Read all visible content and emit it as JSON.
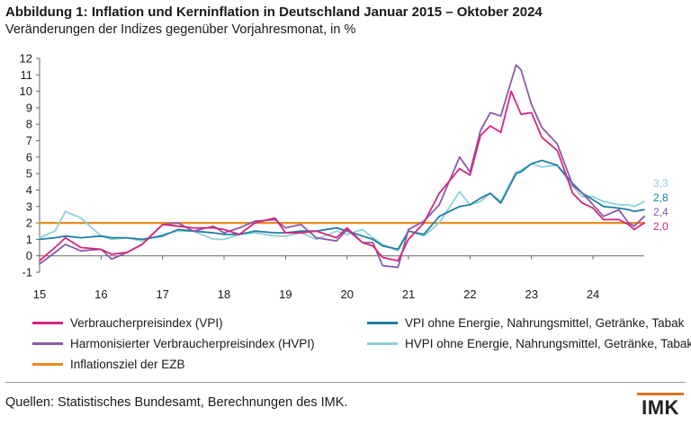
{
  "header": {
    "title": "Abbildung 1: Inflation und Kerninflation in Deutschland Januar 2015 – Oktober 2024",
    "subtitle": "Veränderungen der Indizes gegenüber Vorjahresmonat, in %"
  },
  "chart_data": {
    "type": "line",
    "title": "Abbildung 1: Inflation und Kerninflation in Deutschland Januar 2015 – Oktober 2024",
    "subtitle": "Veränderungen der Indizes gegenüber Vorjahresmonat, in %",
    "xlabel": "",
    "ylabel": "",
    "ylim": [
      -1,
      12
    ],
    "yticks": [
      "-1",
      "0",
      "1",
      "2",
      "3",
      "4",
      "5",
      "6",
      "7",
      "8",
      "9",
      "10",
      "11",
      "12"
    ],
    "xlim": [
      2015,
      2024.833
    ],
    "xticks": [
      {
        "value": 2015,
        "label": "15"
      },
      {
        "value": 2016,
        "label": "16"
      },
      {
        "value": 2017,
        "label": "17"
      },
      {
        "value": 2018,
        "label": "18"
      },
      {
        "value": 2019,
        "label": "19"
      },
      {
        "value": 2020,
        "label": "20"
      },
      {
        "value": 2021,
        "label": "21"
      },
      {
        "value": 2022,
        "label": "22"
      },
      {
        "value": 2023,
        "label": "23"
      },
      {
        "value": 2024,
        "label": "24"
      }
    ],
    "grid": false,
    "series": [
      {
        "name": "Verbraucherpreisindex (VPI)",
        "color": "#d6247f",
        "end_label": "2,0",
        "points": [
          [
            2015,
            -0.3
          ],
          [
            2015.25,
            0.5
          ],
          [
            2015.42,
            1.1
          ],
          [
            2015.67,
            0.5
          ],
          [
            2016,
            0.4
          ],
          [
            2016.17,
            0.1
          ],
          [
            2016.42,
            0.2
          ],
          [
            2016.67,
            0.7
          ],
          [
            2017,
            1.9
          ],
          [
            2017.25,
            1.8
          ],
          [
            2017.5,
            1.7
          ],
          [
            2017.83,
            1.7
          ],
          [
            2018,
            1.6
          ],
          [
            2018.25,
            1.3
          ],
          [
            2018.5,
            2.0
          ],
          [
            2018.83,
            2.3
          ],
          [
            2019,
            1.4
          ],
          [
            2019.25,
            1.4
          ],
          [
            2019.5,
            1.5
          ],
          [
            2019.83,
            1.1
          ],
          [
            2020,
            1.7
          ],
          [
            2020.25,
            0.8
          ],
          [
            2020.42,
            0.6
          ],
          [
            2020.58,
            -0.1
          ],
          [
            2020.83,
            -0.3
          ],
          [
            2021,
            1.0
          ],
          [
            2021.25,
            2.0
          ],
          [
            2021.5,
            3.8
          ],
          [
            2021.83,
            5.3
          ],
          [
            2022,
            4.9
          ],
          [
            2022.17,
            7.3
          ],
          [
            2022.33,
            7.9
          ],
          [
            2022.5,
            7.5
          ],
          [
            2022.67,
            10.0
          ],
          [
            2022.83,
            8.6
          ],
          [
            2023,
            8.7
          ],
          [
            2023.17,
            7.2
          ],
          [
            2023.42,
            6.4
          ],
          [
            2023.67,
            3.8
          ],
          [
            2023.83,
            3.2
          ],
          [
            2024,
            2.9
          ],
          [
            2024.17,
            2.2
          ],
          [
            2024.42,
            2.2
          ],
          [
            2024.58,
            1.9
          ],
          [
            2024.67,
            1.6
          ],
          [
            2024.833,
            2.0
          ]
        ]
      },
      {
        "name": "Harmonisierter Verbraucherpreisindex (HVPI)",
        "color": "#8a5aa6",
        "end_label": "2,4",
        "points": [
          [
            2015,
            -0.5
          ],
          [
            2015.25,
            0.2
          ],
          [
            2015.42,
            0.7
          ],
          [
            2015.67,
            0.3
          ],
          [
            2016,
            0.4
          ],
          [
            2016.17,
            -0.2
          ],
          [
            2016.42,
            0.2
          ],
          [
            2016.67,
            0.7
          ],
          [
            2017,
            1.9
          ],
          [
            2017.25,
            2.0
          ],
          [
            2017.5,
            1.5
          ],
          [
            2017.83,
            1.8
          ],
          [
            2018,
            1.4
          ],
          [
            2018.25,
            1.7
          ],
          [
            2018.5,
            2.1
          ],
          [
            2018.83,
            2.2
          ],
          [
            2019,
            1.7
          ],
          [
            2019.25,
            1.9
          ],
          [
            2019.5,
            1.1
          ],
          [
            2019.83,
            0.9
          ],
          [
            2020,
            1.6
          ],
          [
            2020.25,
            0.8
          ],
          [
            2020.42,
            0.8
          ],
          [
            2020.58,
            -0.6
          ],
          [
            2020.83,
            -0.7
          ],
          [
            2021,
            1.6
          ],
          [
            2021.25,
            2.1
          ],
          [
            2021.5,
            3.1
          ],
          [
            2021.83,
            6.0
          ],
          [
            2022,
            5.1
          ],
          [
            2022.17,
            7.6
          ],
          [
            2022.33,
            8.7
          ],
          [
            2022.5,
            8.5
          ],
          [
            2022.75,
            11.6
          ],
          [
            2022.83,
            11.3
          ],
          [
            2023,
            9.2
          ],
          [
            2023.17,
            7.8
          ],
          [
            2023.42,
            6.8
          ],
          [
            2023.67,
            4.3
          ],
          [
            2023.83,
            3.8
          ],
          [
            2024,
            3.1
          ],
          [
            2024.17,
            2.4
          ],
          [
            2024.42,
            2.8
          ],
          [
            2024.58,
            2.0
          ],
          [
            2024.67,
            1.8
          ],
          [
            2024.833,
            2.4
          ]
        ]
      },
      {
        "name": "VPI ohne Energie, Nahrungsmittel, Getränke, Tabak",
        "color": "#1f7fa3",
        "end_label": "2,8",
        "points": [
          [
            2015,
            1.0
          ],
          [
            2015.25,
            1.1
          ],
          [
            2015.42,
            1.2
          ],
          [
            2015.67,
            1.1
          ],
          [
            2016,
            1.2
          ],
          [
            2016.17,
            1.1
          ],
          [
            2016.42,
            1.1
          ],
          [
            2016.67,
            1.0
          ],
          [
            2017,
            1.2
          ],
          [
            2017.25,
            1.6
          ],
          [
            2017.5,
            1.5
          ],
          [
            2017.83,
            1.4
          ],
          [
            2018,
            1.3
          ],
          [
            2018.25,
            1.3
          ],
          [
            2018.5,
            1.5
          ],
          [
            2018.83,
            1.4
          ],
          [
            2019,
            1.4
          ],
          [
            2019.25,
            1.5
          ],
          [
            2019.5,
            1.5
          ],
          [
            2019.83,
            1.7
          ],
          [
            2020,
            1.5
          ],
          [
            2020.25,
            1.2
          ],
          [
            2020.42,
            1.0
          ],
          [
            2020.58,
            0.6
          ],
          [
            2020.83,
            0.4
          ],
          [
            2021,
            1.5
          ],
          [
            2021.25,
            1.3
          ],
          [
            2021.5,
            2.4
          ],
          [
            2021.83,
            3.0
          ],
          [
            2022,
            3.1
          ],
          [
            2022.17,
            3.5
          ],
          [
            2022.33,
            3.8
          ],
          [
            2022.5,
            3.2
          ],
          [
            2022.75,
            5.0
          ],
          [
            2022.83,
            5.1
          ],
          [
            2023,
            5.6
          ],
          [
            2023.17,
            5.8
          ],
          [
            2023.42,
            5.5
          ],
          [
            2023.67,
            4.4
          ],
          [
            2023.83,
            3.8
          ],
          [
            2024,
            3.4
          ],
          [
            2024.17,
            3.0
          ],
          [
            2024.42,
            2.9
          ],
          [
            2024.58,
            2.8
          ],
          [
            2024.67,
            2.7
          ],
          [
            2024.833,
            2.8
          ]
        ]
      },
      {
        "name": "HVPI ohne Energie, Nahrungsmittel, Getränke, Tabak",
        "color": "#8fd0d8",
        "end_label": "3,3",
        "points": [
          [
            2015,
            1.1
          ],
          [
            2015.25,
            1.5
          ],
          [
            2015.42,
            2.7
          ],
          [
            2015.67,
            2.3
          ],
          [
            2016,
            1.2
          ],
          [
            2016.17,
            1.0
          ],
          [
            2016.42,
            1.1
          ],
          [
            2016.67,
            0.9
          ],
          [
            2017,
            1.3
          ],
          [
            2017.25,
            1.5
          ],
          [
            2017.5,
            1.5
          ],
          [
            2017.83,
            1.0
          ],
          [
            2018,
            1.0
          ],
          [
            2018.25,
            1.3
          ],
          [
            2018.5,
            1.4
          ],
          [
            2018.83,
            1.2
          ],
          [
            2019,
            1.2
          ],
          [
            2019.25,
            1.4
          ],
          [
            2019.5,
            1.0
          ],
          [
            2019.83,
            1.5
          ],
          [
            2020,
            1.3
          ],
          [
            2020.25,
            1.6
          ],
          [
            2020.42,
            1.1
          ],
          [
            2020.58,
            0.7
          ],
          [
            2020.83,
            0.3
          ],
          [
            2021,
            1.5
          ],
          [
            2021.25,
            1.2
          ],
          [
            2021.5,
            2.0
          ],
          [
            2021.83,
            3.9
          ],
          [
            2022,
            3.1
          ],
          [
            2022.17,
            3.3
          ],
          [
            2022.33,
            3.8
          ],
          [
            2022.5,
            3.3
          ],
          [
            2022.75,
            5.1
          ],
          [
            2022.83,
            5.2
          ],
          [
            2023,
            5.6
          ],
          [
            2023.17,
            5.4
          ],
          [
            2023.42,
            5.5
          ],
          [
            2023.67,
            4.2
          ],
          [
            2023.83,
            3.6
          ],
          [
            2024,
            3.6
          ],
          [
            2024.17,
            3.3
          ],
          [
            2024.42,
            3.1
          ],
          [
            2024.58,
            3.1
          ],
          [
            2024.67,
            3.0
          ],
          [
            2024.833,
            3.3
          ]
        ]
      },
      {
        "name": "Inflationsziel der EZB",
        "color": "#ee8a1c",
        "end_label": "",
        "points": [
          [
            2015,
            2.0
          ],
          [
            2024.833,
            2.0
          ]
        ]
      }
    ]
  },
  "source": "Quellen: Statistisches Bundesamt, Berechnungen des IMK.",
  "logo": "IMK"
}
